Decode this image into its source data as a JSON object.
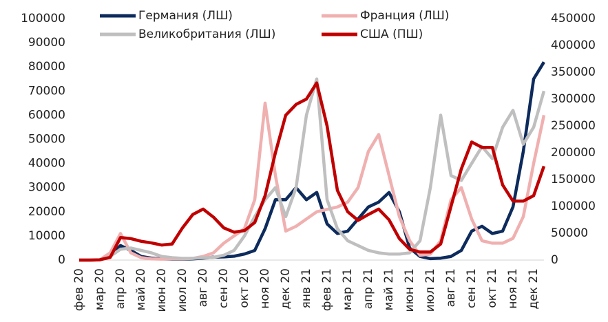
{
  "chart_data": {
    "type": "line",
    "categories": [
      "фев 20",
      null,
      "мар 20",
      null,
      "апр 20",
      null,
      "май 20",
      null,
      "июн 20",
      null,
      "июл 20",
      null,
      "авг 20",
      null,
      "сен 20",
      null,
      "окт 20",
      null,
      "ноя 20",
      null,
      "дек 20",
      null,
      "янв 21",
      null,
      "фев 21",
      null,
      "мар 21",
      null,
      "апр 21",
      null,
      "май 21",
      null,
      "июн 21",
      null,
      "июл 21",
      null,
      "авг 21",
      null,
      "сен 21",
      null,
      "окт 21",
      null,
      "ноя 21",
      null,
      "дек 21",
      null
    ],
    "series": [
      {
        "name": "Германия (ЛШ)",
        "color": "#0d2b5c",
        "values": [
          0,
          0,
          100,
          1500,
          6000,
          4000,
          1500,
          800,
          500,
          400,
          400,
          500,
          800,
          1200,
          1300,
          1600,
          2500,
          4000,
          13000,
          25000,
          25000,
          30000,
          25000,
          28000,
          15000,
          11000,
          12000,
          17000,
          22000,
          24000,
          28000,
          20000,
          5000,
          1500,
          600,
          800,
          1500,
          4000,
          12000,
          14000,
          11000,
          12000,
          22000,
          45000,
          75000,
          82000
        ]
      },
      {
        "name": "Франция (ЛШ)",
        "color": "#f0b0b0",
        "values": [
          0,
          0,
          100,
          3000,
          11000,
          3000,
          1000,
          500,
          400,
          500,
          500,
          700,
          1500,
          3000,
          7000,
          10000,
          13000,
          25000,
          65000,
          35000,
          12000,
          14000,
          17000,
          20000,
          21000,
          22000,
          24000,
          30000,
          45000,
          52000,
          35000,
          18000,
          8000,
          2000,
          2500,
          8000,
          25000,
          30000,
          17000,
          8000,
          7000,
          7000,
          9000,
          18000,
          40000,
          60000
        ]
      },
      {
        "name": "Великобритания (ЛШ)",
        "color": "#bfbfbf",
        "values": [
          0,
          0,
          100,
          1500,
          4500,
          5000,
          4000,
          3000,
          1500,
          1000,
          700,
          700,
          1000,
          1100,
          2000,
          4000,
          10000,
          18000,
          25000,
          30000,
          18000,
          30000,
          60000,
          75000,
          25000,
          13000,
          8000,
          6000,
          4000,
          3000,
          2500,
          2500,
          3000,
          8000,
          30000,
          60000,
          35000,
          33000,
          40000,
          47000,
          42000,
          55000,
          62000,
          48000,
          55000,
          70000
        ]
      },
      {
        "name": "США (ПШ)",
        "color": "#c00000",
        "axis": "y2",
        "values": [
          0,
          0,
          500,
          5000,
          42000,
          40000,
          35000,
          32000,
          28000,
          30000,
          60000,
          85000,
          95000,
          80000,
          60000,
          52000,
          55000,
          70000,
          120000,
          200000,
          270000,
          290000,
          300000,
          330000,
          250000,
          130000,
          90000,
          74000,
          85000,
          95000,
          75000,
          40000,
          20000,
          15000,
          15000,
          30000,
          100000,
          170000,
          220000,
          210000,
          210000,
          140000,
          110000,
          110000,
          120000,
          175000
        ]
      }
    ],
    "ylim": [
      0,
      100000
    ],
    "yticks": [
      0,
      10000,
      20000,
      30000,
      40000,
      50000,
      60000,
      70000,
      80000,
      90000,
      100000
    ],
    "y2lim": [
      0,
      450000
    ],
    "y2ticks": [
      0,
      50000,
      100000,
      150000,
      200000,
      250000,
      300000,
      350000,
      400000,
      450000
    ],
    "legend": "top"
  }
}
